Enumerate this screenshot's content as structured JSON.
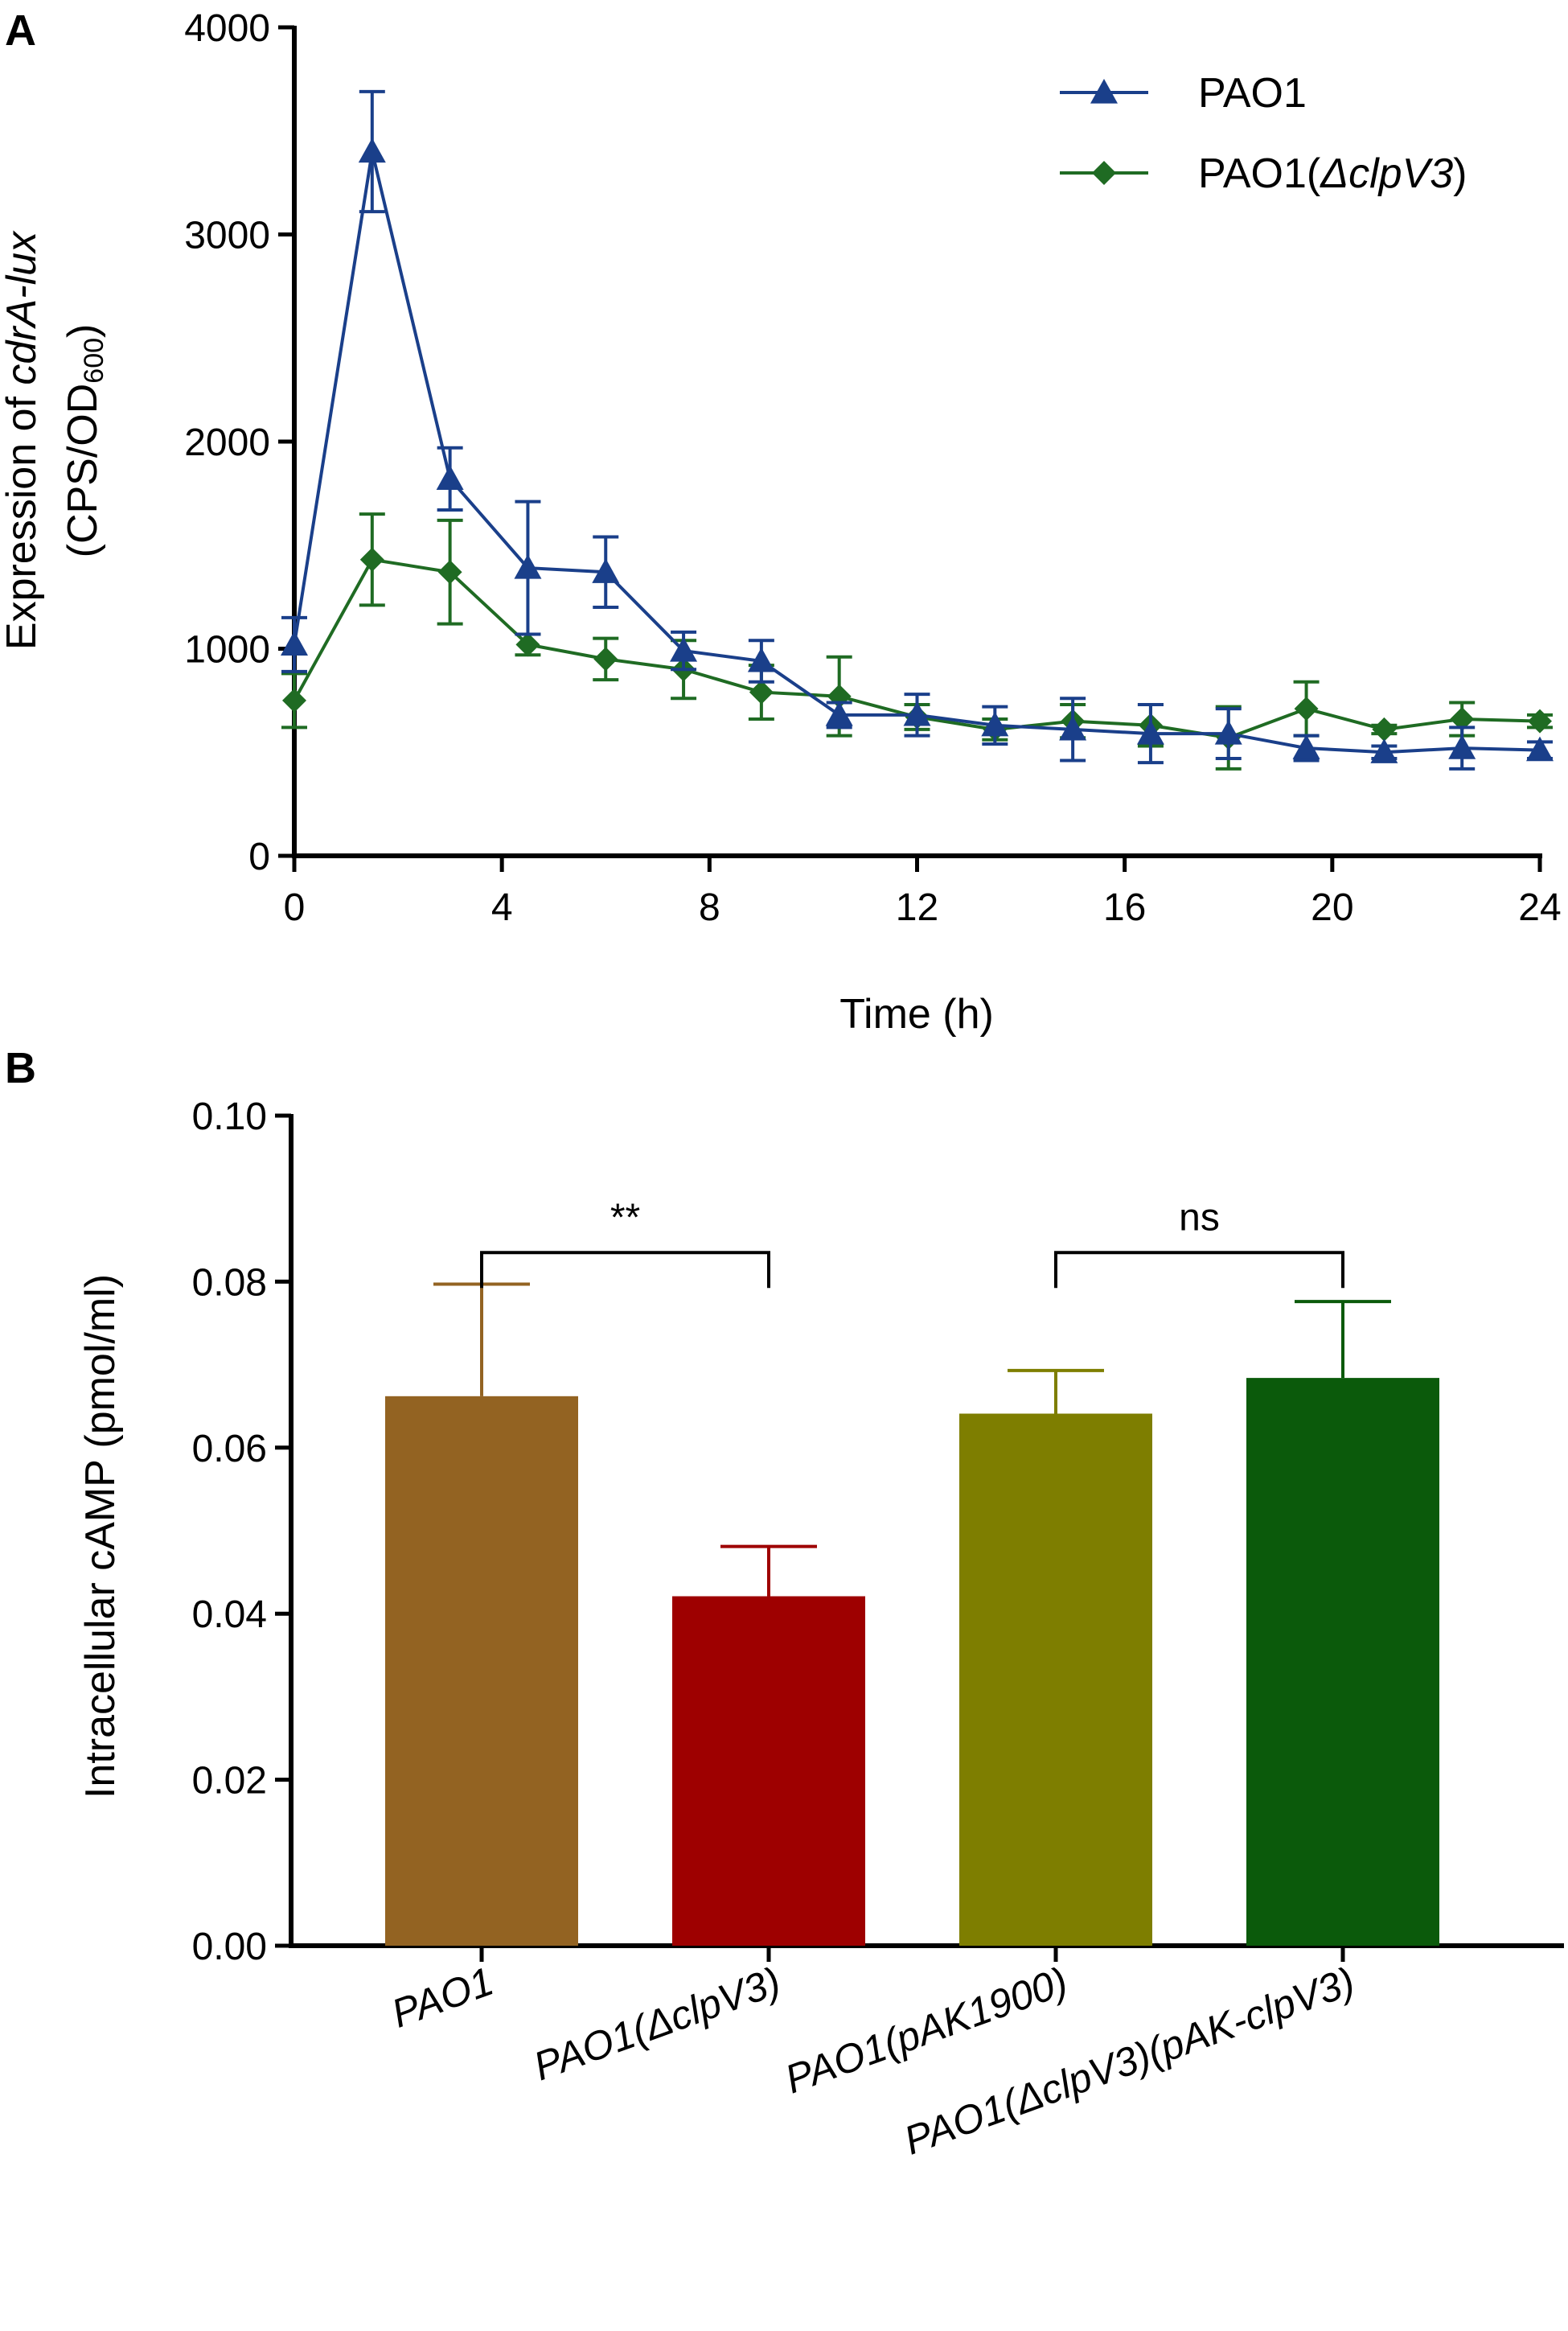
{
  "chart_data": [
    {
      "panel": "A",
      "type": "line",
      "xlabel": "Time (h)",
      "ylabel_line1": "Expression of cdrA-lux",
      "ylabel_line2": "(CPS/OD600)",
      "ylabel_parts": {
        "prefix": "Expression of ",
        "italic": "cdrA-lux"
      },
      "ylabel2_parts": {
        "prefix": "(CPS/OD",
        "sub": "600",
        "suffix": ")"
      },
      "xlim": [
        0,
        24
      ],
      "ylim": [
        0,
        4000
      ],
      "xticks": [
        0,
        4,
        8,
        12,
        16,
        20,
        24
      ],
      "yticks": [
        0,
        1000,
        2000,
        3000,
        4000
      ],
      "legend_position": "top-right",
      "series": [
        {
          "name": "PAO1",
          "name_parts": {
            "prefix": "PAO1",
            "italic": "",
            "suffix": ""
          },
          "color": "#1a3f8a",
          "marker": "triangle",
          "x": [
            0,
            1.5,
            3,
            4.5,
            6,
            7.5,
            9,
            10.5,
            12,
            13.5,
            15,
            16.5,
            18,
            19.5,
            21,
            22.5,
            24
          ],
          "y": [
            1020,
            3400,
            1820,
            1390,
            1370,
            990,
            940,
            680,
            680,
            630,
            610,
            590,
            590,
            520,
            500,
            520,
            510
          ],
          "err": [
            130,
            290,
            150,
            320,
            170,
            90,
            100,
            60,
            100,
            90,
            150,
            140,
            120,
            60,
            30,
            100,
            40
          ]
        },
        {
          "name": "PAO1(ΔclpV3)",
          "name_parts": {
            "prefix": "PAO1(",
            "italic": "ΔclpV3",
            "suffix": ")"
          },
          "color": "#1f6b23",
          "marker": "diamond",
          "x": [
            0,
            1.5,
            3,
            4.5,
            6,
            7.5,
            9,
            10.5,
            12,
            13.5,
            15,
            16.5,
            18,
            19.5,
            21,
            22.5,
            24
          ],
          "y": [
            750,
            1430,
            1370,
            1020,
            950,
            900,
            790,
            770,
            670,
            610,
            650,
            630,
            570,
            710,
            610,
            660,
            650
          ],
          "err": [
            130,
            220,
            250,
            50,
            100,
            140,
            130,
            190,
            60,
            50,
            80,
            100,
            150,
            130,
            20,
            80,
            30
          ]
        }
      ]
    },
    {
      "panel": "B",
      "type": "bar",
      "ylabel": "Intracellular cAMP (pmol/ml)",
      "ylim": [
        0,
        0.1
      ],
      "yticks": [
        "0.00",
        "0.02",
        "0.04",
        "0.06",
        "0.08",
        "0.10"
      ],
      "categories": [
        "PAO1",
        "PAO1(ΔclpV3)",
        "PAO1(pAK1900)",
        "PAO1(ΔclpV3)(pAK-clpV3)"
      ],
      "category_parts": [
        [
          {
            "t": "PAO1",
            "i": false
          }
        ],
        [
          {
            "t": "PAO1(",
            "i": false
          },
          {
            "t": "ΔclpV3",
            "i": true
          },
          {
            "t": ")",
            "i": false
          }
        ],
        [
          {
            "t": "PAO1(",
            "i": false
          },
          {
            "t": "pAK1900",
            "i": true
          },
          {
            "t": ")",
            "i": false
          }
        ],
        [
          {
            "t": "PAO1(",
            "i": false
          },
          {
            "t": "ΔclpV3",
            "i": true
          },
          {
            "t": ")(",
            "i": false
          },
          {
            "t": "pAK-clpV3",
            "i": true
          },
          {
            "t": ")",
            "i": false
          }
        ]
      ],
      "values": [
        0.0662,
        0.0421,
        0.0641,
        0.0684
      ],
      "errors": [
        0.0135,
        0.006,
        0.0052,
        0.0092
      ],
      "colors": [
        "#936322",
        "#9e0000",
        "#7e7e00",
        "#0b5a0b"
      ],
      "annotations": [
        {
          "label": "**",
          "from": 0,
          "to": 1,
          "y": 0.0835
        },
        {
          "label": "ns",
          "from": 2,
          "to": 3,
          "y": 0.0835
        }
      ]
    }
  ],
  "panel_labels": {
    "a": "A",
    "b": "B"
  }
}
